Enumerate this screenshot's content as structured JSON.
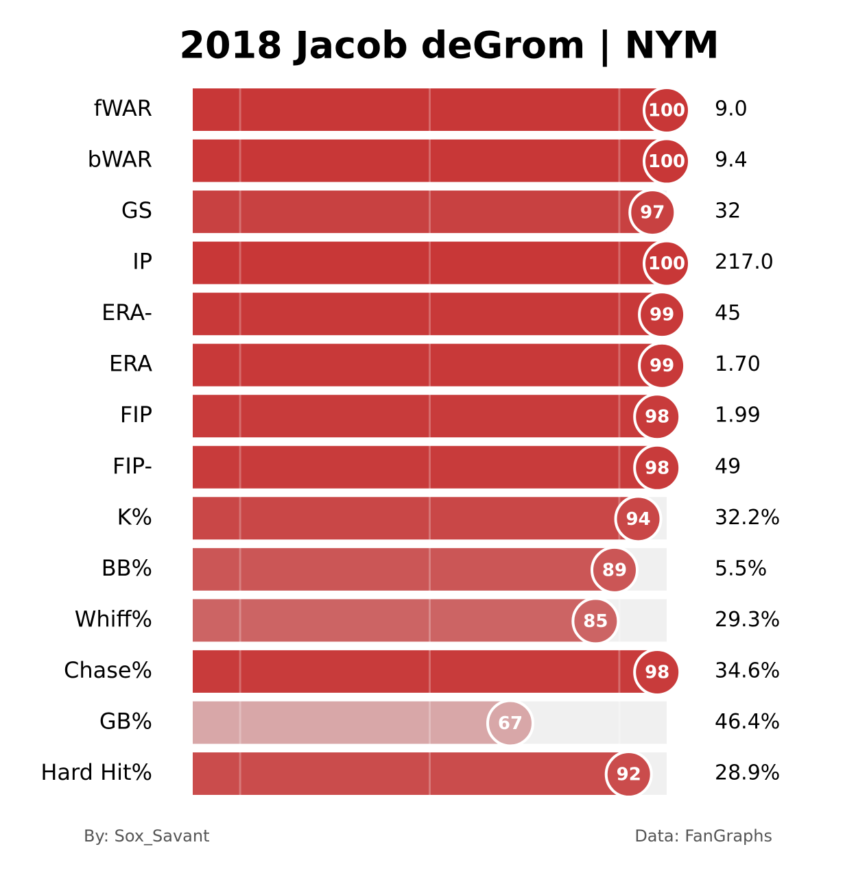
{
  "chart_data": {
    "type": "percentile-bar",
    "title": "2018 Jacob deGrom | NYM",
    "categories": [
      "fWAR",
      "bWAR",
      "GS",
      "IP",
      "ERA-",
      "ERA",
      "FIP",
      "FIP-",
      "K%",
      "BB%",
      "Whiff%",
      "Chase%",
      "GB%",
      "Hard Hit%"
    ],
    "values": [
      100,
      100,
      97,
      100,
      99,
      99,
      98,
      98,
      94,
      89,
      85,
      98,
      67,
      92
    ],
    "stats": [
      "9.0",
      "9.4",
      "32",
      "217.0",
      "45",
      "1.70",
      "1.99",
      "49",
      "32.2%",
      "5.5%",
      "29.3%",
      "34.6%",
      "46.4%",
      "28.9%"
    ],
    "colors": [
      "#c83737",
      "#c83737",
      "#c84141",
      "#c83737",
      "#c83939",
      "#c83939",
      "#c83b3b",
      "#c83b3b",
      "#c94747",
      "#cb5656",
      "#cc6464",
      "#c83b3b",
      "#d8a7a8",
      "#ca4c4c"
    ],
    "xlim": [
      0,
      100
    ],
    "xticks": [
      10,
      50,
      90
    ],
    "grid": true,
    "footer_left": "By: Sox_Savant",
    "footer_right": "Data: FanGraphs"
  }
}
